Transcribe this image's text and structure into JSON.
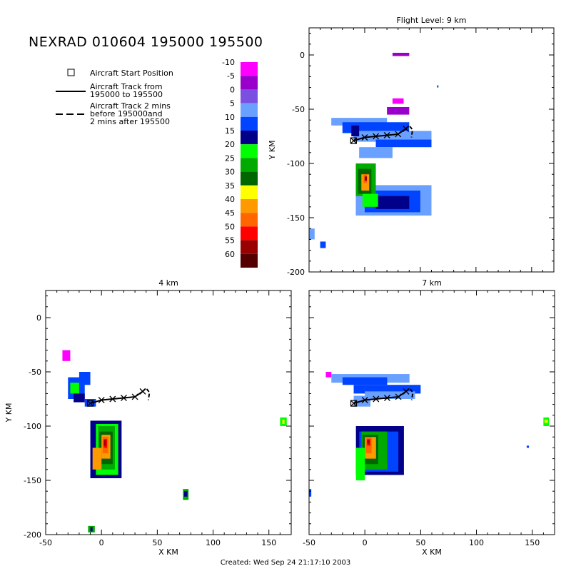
{
  "title": "NEXRAD 010604 195000 195500",
  "footer": "Created: Wed Sep 24 21:17:10 2003",
  "legend": {
    "start": "Aircraft Start Position",
    "track_l1": "Aircraft Track from",
    "track_l2": "195000 to 195500",
    "dash_l1": "Aircraft Track 2 mins",
    "dash_l2": "before 195000and",
    "dash_l3": "2 mins after 195500"
  },
  "colorbar": {
    "labels": [
      "-10",
      "-5",
      "0",
      "5",
      "10",
      "15",
      "20",
      "25",
      "30",
      "35",
      "40",
      "45",
      "50",
      "55",
      "60"
    ],
    "colors": [
      "#ff00ff",
      "#9900cc",
      "#7b4fe0",
      "#6aa0ff",
      "#0044ff",
      "#000088",
      "#00ff00",
      "#00aa00",
      "#006600",
      "#ffff00",
      "#ff9900",
      "#ff6600",
      "#ff0000",
      "#990000",
      "#550000"
    ]
  },
  "chart_data": [
    {
      "type": "heatmap",
      "title": "Flight Level: 9 km",
      "xlabel": "",
      "ylabel": "Y KM",
      "xlim": [
        -50,
        170
      ],
      "ylim": [
        -200,
        25
      ],
      "xticks": [],
      "yticks": [
        "0",
        "-50",
        "-100",
        "-150",
        "-200"
      ],
      "track_x": [
        -10,
        0,
        10,
        20,
        30,
        37
      ],
      "track_y": [
        -79,
        -76,
        -75,
        -74,
        -73,
        -68
      ]
    },
    {
      "type": "heatmap",
      "title": "4 km",
      "xlabel": "X KM",
      "ylabel": "Y KM",
      "xlim": [
        -50,
        170
      ],
      "ylim": [
        -200,
        25
      ],
      "xticks": [
        "-50",
        "0",
        "50",
        "100",
        "150"
      ],
      "yticks": [
        "0",
        "-50",
        "-100",
        "-150",
        "-200"
      ],
      "track_x": [
        -10,
        0,
        10,
        20,
        30,
        37
      ],
      "track_y": [
        -79,
        -76,
        -75,
        -74,
        -73,
        -68
      ]
    },
    {
      "type": "heatmap",
      "title": "7 km",
      "xlabel": "X KM",
      "ylabel": "",
      "xlim": [
        -50,
        170
      ],
      "ylim": [
        -200,
        25
      ],
      "xticks": [
        "-50",
        "0",
        "50",
        "100",
        "150"
      ],
      "yticks": [],
      "track_x": [
        -10,
        0,
        10,
        20,
        30,
        37
      ],
      "track_y": [
        -79,
        -76,
        -75,
        -74,
        -73,
        -68
      ]
    }
  ]
}
